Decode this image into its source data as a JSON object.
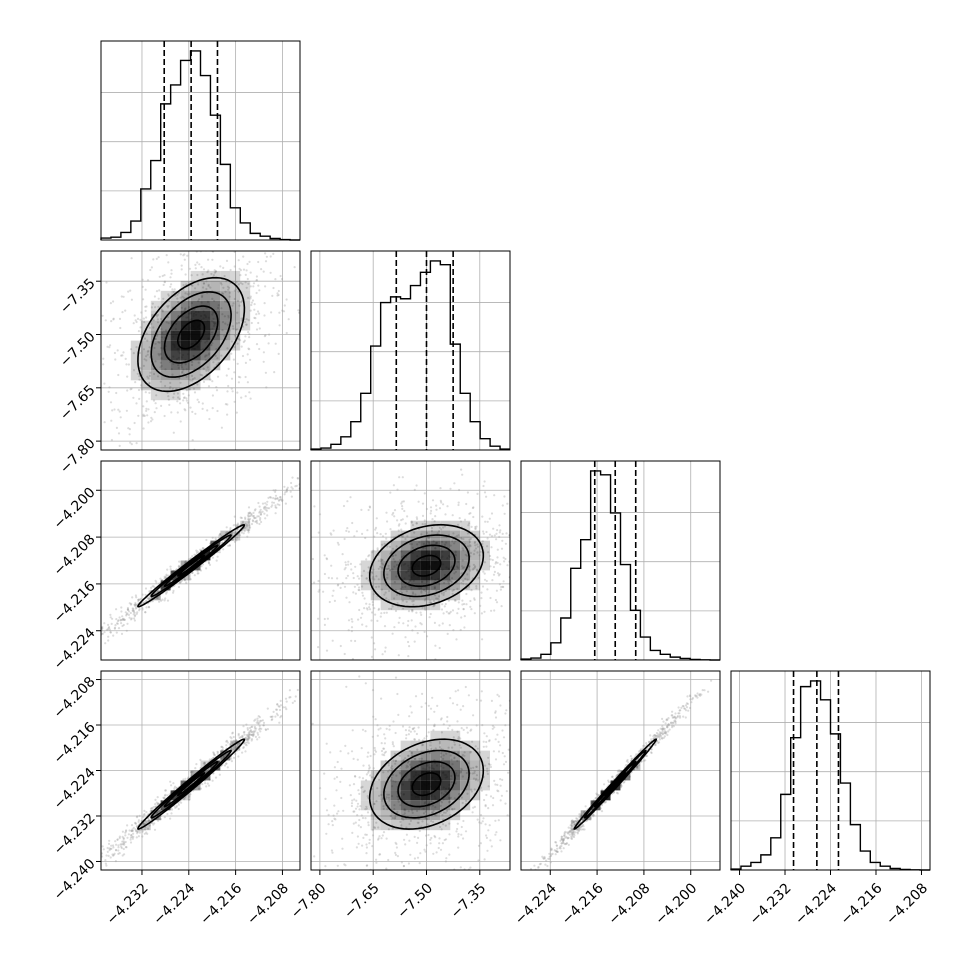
{
  "figure": {
    "background": "#ffffff",
    "frame_color": "#000000",
    "grid_color": "#b0b0b0",
    "hist_color": "#000000",
    "contour_color": "#000000",
    "scatter_color": "#9a9a9a",
    "density_color": "#000000"
  },
  "chart_data": {
    "type": "corner",
    "grid": true,
    "parameters": [
      {
        "id": "p0",
        "range": [
          -4.239,
          -4.205
        ],
        "ticks": [
          -4.232,
          -4.224,
          -4.216,
          -4.208
        ],
        "tick_labels": [
          "−4.232",
          "−4.224",
          "−4.216",
          "−4.208"
        ],
        "quantiles": [
          -4.2282,
          -4.2236,
          -4.2191
        ],
        "hist_counts": [
          0.01,
          0.015,
          0.04,
          0.1,
          0.27,
          0.42,
          0.72,
          0.82,
          0.95,
          1.0,
          0.87,
          0.66,
          0.4,
          0.17,
          0.09,
          0.035,
          0.02,
          0.008,
          0.002,
          0.0
        ]
      },
      {
        "id": "p1",
        "range": [
          -7.825,
          -7.265
        ],
        "ticks": [
          -7.8,
          -7.65,
          -7.5,
          -7.35
        ],
        "tick_labels": [
          "−7.80",
          "−7.65",
          "−7.50",
          "−7.35"
        ],
        "quantiles": [
          -7.585,
          -7.5,
          -7.425
        ],
        "hist_counts": [
          0.005,
          0.01,
          0.03,
          0.07,
          0.15,
          0.3,
          0.55,
          0.78,
          0.81,
          0.8,
          0.87,
          0.94,
          1.0,
          0.98,
          0.56,
          0.3,
          0.15,
          0.06,
          0.02,
          0.005
        ]
      },
      {
        "id": "p2",
        "range": [
          -4.229,
          -4.195
        ],
        "ticks": [
          -4.224,
          -4.216,
          -4.208,
          -4.2
        ],
        "tick_labels": [
          "−4.224",
          "−4.216",
          "−4.208",
          "−4.200"
        ],
        "quantiles": [
          -4.2164,
          -4.2129,
          -4.2094
        ],
        "hist_counts": [
          0.005,
          0.01,
          0.03,
          0.09,
          0.22,
          0.48,
          0.63,
          0.99,
          0.97,
          0.77,
          0.5,
          0.26,
          0.12,
          0.05,
          0.03,
          0.015,
          0.008,
          0.003,
          0.001,
          0.0
        ]
      },
      {
        "id": "p3",
        "range": [
          -4.2415,
          -4.2065
        ],
        "ticks": [
          -4.24,
          -4.232,
          -4.224,
          -4.216,
          -4.208
        ],
        "tick_labels": [
          "−4.240",
          "−4.232",
          "−4.224",
          "−4.216",
          "−4.208"
        ],
        "quantiles": [
          -4.2305,
          -4.2264,
          -4.2226
        ],
        "hist_counts": [
          0.005,
          0.02,
          0.04,
          0.08,
          0.17,
          0.4,
          0.7,
          0.97,
          1.0,
          0.9,
          0.72,
          0.46,
          0.24,
          0.1,
          0.04,
          0.02,
          0.008,
          0.003,
          0.001,
          0.0
        ]
      }
    ],
    "correlations": {
      "1,0": 0.45,
      "2,0": 0.99,
      "2,1": 0.25,
      "3,0": 0.99,
      "3,1": 0.3,
      "3,2": 0.995
    },
    "contour_levels": [
      0.5,
      1.0,
      1.5,
      2.0
    ]
  }
}
